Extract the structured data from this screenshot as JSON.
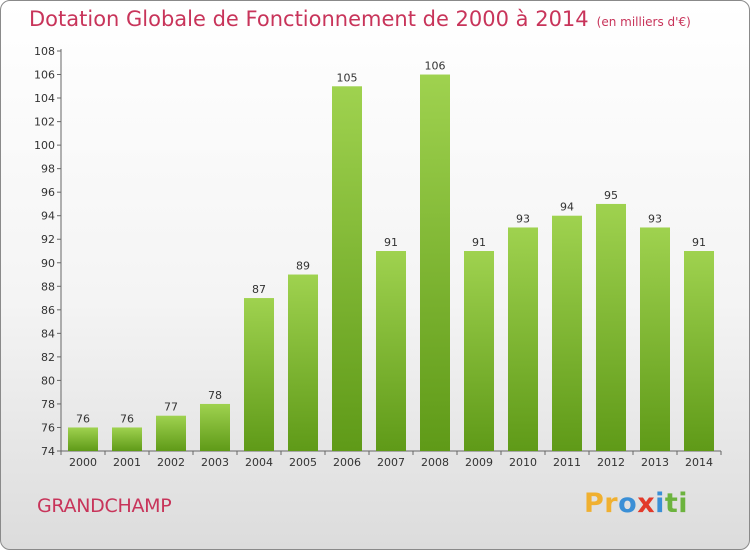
{
  "header": {
    "title": "Dotation Globale de Fonctionnement de 2000 à 2014",
    "unit": "(en milliers d'€)"
  },
  "footer": {
    "commune": "GRANDCHAMP",
    "logo_letters": [
      "P",
      "r",
      "o",
      "x",
      "i",
      "t",
      "i"
    ]
  },
  "colors": {
    "title": "#c8345a",
    "bar_light": "#9fd24f",
    "bar_dark": "#5f9a18",
    "logo": [
      "#f0b030",
      "#f0b030",
      "#3a8fd6",
      "#e23a2a",
      "#3a8fd6",
      "#6cb33e",
      "#6cb33e"
    ]
  },
  "chart_data": {
    "type": "bar",
    "title": "Dotation Globale de Fonctionnement de 2000 à 2014",
    "subtitle": "(en milliers d'€)",
    "xlabel": "",
    "ylabel": "",
    "categories": [
      "2000",
      "2001",
      "2002",
      "2003",
      "2004",
      "2005",
      "2006",
      "2007",
      "2008",
      "2009",
      "2010",
      "2011",
      "2012",
      "2013",
      "2014"
    ],
    "values": [
      76,
      76,
      77,
      78,
      87,
      89,
      105,
      91,
      106,
      91,
      93,
      94,
      95,
      93,
      91
    ],
    "ylim": [
      74,
      108
    ],
    "yticks": [
      74,
      76,
      78,
      80,
      82,
      84,
      86,
      88,
      90,
      92,
      94,
      96,
      98,
      100,
      102,
      104,
      106,
      108
    ],
    "grid": false,
    "legend": "none"
  }
}
